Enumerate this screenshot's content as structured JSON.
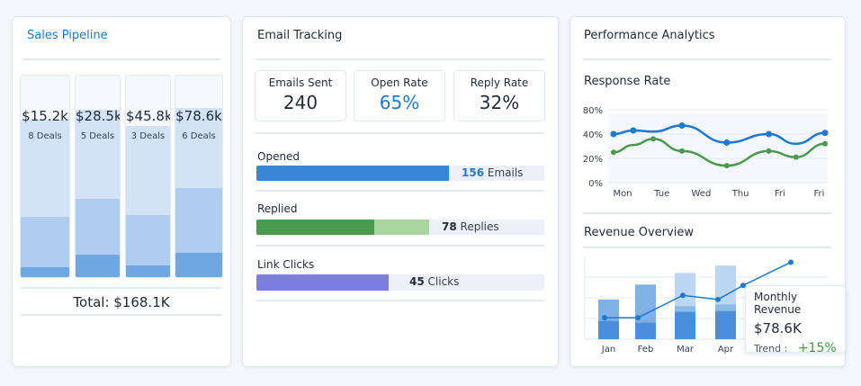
{
  "sales": {
    "title": "Sales Pipeline",
    "columns": [
      {
        "amount": "$15.2k",
        "deals": "8 Deals",
        "segments": [
          48,
          25,
          5
        ]
      },
      {
        "amount": "$28.5k",
        "deals": "5 Deals",
        "segments": [
          44,
          28,
          11
        ]
      },
      {
        "amount": "$45.8k",
        "deals": "3 Deals",
        "segments": [
          44,
          25,
          6
        ]
      },
      {
        "amount": "$78.6k",
        "deals": "6 Deals",
        "segments": [
          40,
          32,
          12
        ]
      }
    ],
    "total": "Total: $168.1K"
  },
  "email": {
    "title": "Email Tracking",
    "stats": [
      {
        "label": "Emails Sent",
        "value": "240"
      },
      {
        "label": "Open Rate",
        "value": "65%"
      },
      {
        "label": "Reply Rate",
        "value": "32%"
      }
    ],
    "opened": {
      "label": "Opened",
      "count": "156",
      "unit": "Emails",
      "fill": 67
    },
    "replied": {
      "label": "Replied",
      "count": "78",
      "unit": "Replies",
      "fill": 41,
      "fill2": 60
    },
    "clicks": {
      "label": "Link Clicks",
      "count": "45",
      "unit": "Clicks",
      "fill": 46
    },
    "colors": {
      "opened": "#3a86d6",
      "replied": "#4a9a4e",
      "replied_light": "#a8d5a0",
      "clicks": "#7b7de0"
    }
  },
  "performance": {
    "title": "Performance Analytics",
    "response": {
      "title": "Response Rate",
      "chart_data": {
        "type": "line",
        "yticks": [
          "80%",
          "40%",
          "20%",
          "0%"
        ],
        "xlabels": [
          "Mon",
          "Tue",
          "Wed",
          "Thu",
          "Fri",
          "Fri"
        ],
        "series": [
          {
            "name": "blue",
            "color": "#1f78d1",
            "x": [
              -0.23,
              0.27,
              0.78,
              1.51,
              2.65,
              3.72,
              4.41,
              5.15
            ],
            "values": [
              40,
              46,
              44,
              54,
              33,
              40,
              32,
              42
            ],
            "dots": [
              1,
              1,
              0,
              1,
              1,
              1,
              0,
              1
            ]
          },
          {
            "name": "green",
            "color": "#4a9a4e",
            "x": [
              -0.23,
              0.27,
              0.78,
              1.51,
              2.65,
              3.72,
              4.41,
              5.15
            ],
            "values": [
              25,
              31,
              36,
              26,
              14,
              26,
              21,
              32
            ],
            "dots": [
              1,
              0,
              1,
              1,
              1,
              1,
              1,
              1
            ]
          }
        ]
      }
    },
    "revenue": {
      "title": "Revenue Overview",
      "chart_data": {
        "type": "bar",
        "categories": [
          "Jan",
          "Feb",
          "Mar",
          "Apr"
        ],
        "series": [
          {
            "name": "total",
            "values": [
              48,
              66,
              80,
              89
            ]
          },
          {
            "name": "mid",
            "values": [
              22,
              20,
              40,
              42
            ]
          },
          {
            "name": "base",
            "values": [
              22,
              20,
              33,
              34
            ]
          }
        ],
        "line": [
          26,
          26,
          53,
          48,
          65,
          93
        ]
      },
      "tooltip": {
        "title": "Monthly Revenue",
        "value": "$78.6K",
        "trend_label": "Trend :",
        "trend_value": "+15%"
      }
    }
  }
}
